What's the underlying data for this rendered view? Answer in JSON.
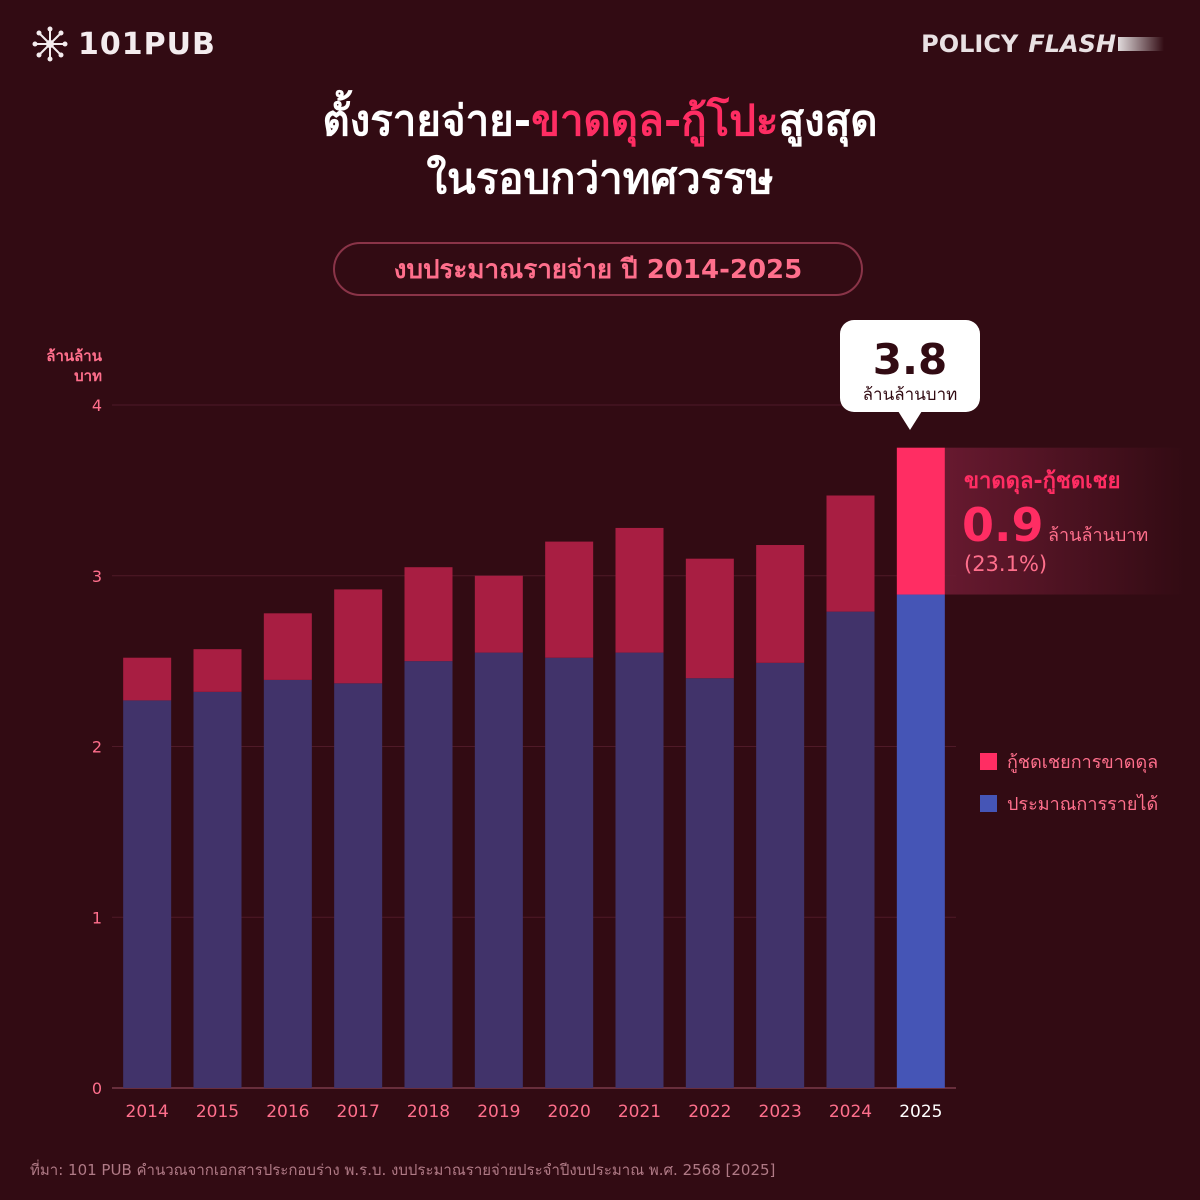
{
  "header": {
    "logo_text": "101PUB",
    "brand_policy": "POLICY",
    "brand_flash": "FLASH"
  },
  "title": {
    "line1_part1": "ตั้งรายจ่าย-",
    "line1_highlight": "ขาดดุล-กู้โปะ",
    "line1_part2": "สูงสุด",
    "line2": "ในรอบกว่าทศวรรษ"
  },
  "subtitle": "งบประมาณรายจ่าย ปี 2014-2025",
  "chart_data": {
    "type": "bar",
    "stacked": true,
    "unit_label_line1": "ล้านล้าน",
    "unit_label_line2": "บาท",
    "categories": [
      "2014",
      "2015",
      "2016",
      "2017",
      "2018",
      "2019",
      "2020",
      "2021",
      "2022",
      "2023",
      "2024",
      "2025"
    ],
    "series": [
      {
        "name": "ประมาณการรายได้",
        "values": [
          2.27,
          2.32,
          2.39,
          2.37,
          2.5,
          2.55,
          2.52,
          2.55,
          2.4,
          2.49,
          2.79,
          2.89
        ],
        "color": "#41336a",
        "highlight_color": "#4555b6"
      },
      {
        "name": "กู้ชดเชยการขาดดุล",
        "values": [
          0.25,
          0.25,
          0.39,
          0.55,
          0.55,
          0.45,
          0.68,
          0.73,
          0.7,
          0.69,
          0.68,
          0.86
        ],
        "color": "#a81e42",
        "highlight_color": "#ff2d63"
      }
    ],
    "highlight_category": "2025",
    "yticks": [
      0,
      1,
      2,
      3,
      4
    ],
    "ylim": [
      0,
      4
    ],
    "grid": true,
    "legend_position": "right",
    "total_callout": {
      "value": "3.8",
      "unit": "ล้านล้านบาท"
    },
    "deficit_annotation": {
      "title": "ขาดดุล-กู้ชดเชย",
      "value": "0.9",
      "unit": "ล้านล้านบาท",
      "percent": "(23.1%)"
    }
  },
  "source": "ที่มา: 101 PUB คำนวณจากเอกสารประกอบร่าง พ.ร.บ. งบประมาณรายจ่ายประจำปีงบประมาณ พ.ศ. 2568 [2025]",
  "colors": {
    "background": "#320b13",
    "accent": "#ff2d63",
    "muted_text": "#ff6f8c"
  }
}
